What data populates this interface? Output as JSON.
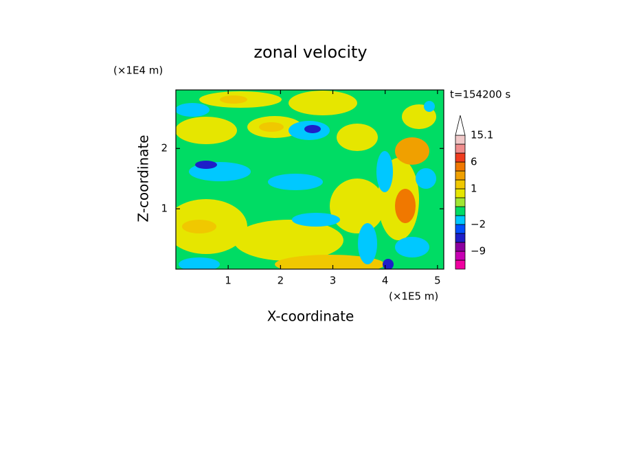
{
  "chart_data": {
    "type": "contour",
    "title": "zonal velocity",
    "x_label": "X-coordinate",
    "y_label": "Z-coordinate",
    "x_unit": "(×1E5 m)",
    "y_unit": "(×1E4 m)",
    "time_label": "t=154200 s",
    "xlim": [
      0,
      5.12
    ],
    "ylim": [
      0,
      2.97
    ],
    "xticks": [
      1,
      2,
      3,
      4,
      5
    ],
    "yticks": [
      1,
      2
    ],
    "colorbar": {
      "levels": [
        -15,
        -12,
        -9,
        -6,
        -4,
        -2,
        -1,
        0,
        0.5,
        1,
        2,
        3,
        6,
        9,
        12,
        15.1
      ],
      "colors": [
        "#f000a0",
        "#c800b4",
        "#8c00a0",
        "#1e1ec8",
        "#0050ff",
        "#00c8ff",
        "#00dc64",
        "#a0e632",
        "#e6e600",
        "#f0c800",
        "#f0a000",
        "#f07800",
        "#f03c1e",
        "#f08c8c",
        "#f0c8c8"
      ],
      "ticks": [
        {
          "value": 15.1,
          "label": "15.1"
        },
        6,
        1,
        {
          "value": -2,
          "label": "−2"
        },
        {
          "value": -9,
          "label": "−9"
        }
      ]
    }
  }
}
